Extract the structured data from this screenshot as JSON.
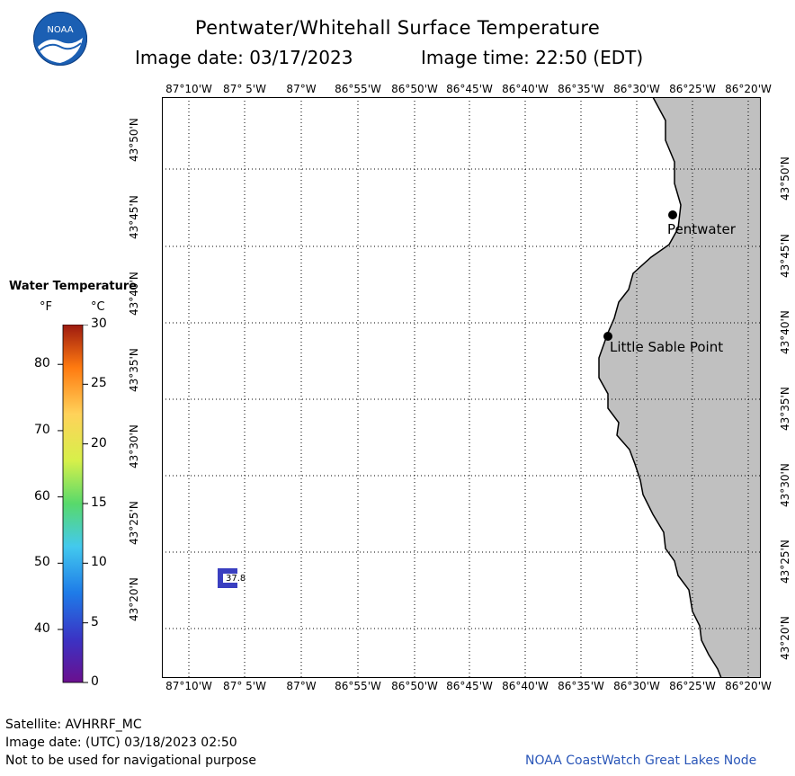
{
  "header": {
    "title": "Pentwater/Whitehall Surface Temperature",
    "image_date": "Image date: 03/17/2023",
    "image_time": "Image time: 22:50 (EDT)",
    "logo_text": "NOAA"
  },
  "map": {
    "lon_labels": [
      "87°10'W",
      "87° 5'W",
      "87°W",
      "86°55'W",
      "86°50'W",
      "86°45'W",
      "86°40'W",
      "86°35'W",
      "86°30'W",
      "86°25'W",
      "86°20'W"
    ],
    "lat_labels": [
      "43°50'N",
      "43°45'N",
      "43°40'N",
      "43°35'N",
      "43°30'N",
      "43°25'N",
      "43°20'N"
    ],
    "places": [
      {
        "name": "Pentwater"
      },
      {
        "name": "Little Sable Point"
      }
    ],
    "buoy_reading": "37.8",
    "colors": {
      "land": "#c0c0c0",
      "water": "#ffffff",
      "buoy": "#3a3fc0"
    }
  },
  "legend": {
    "title": "Water Temperature",
    "unit_f": "°F",
    "unit_c": "°C",
    "f_ticks": [
      "80",
      "70",
      "60",
      "50",
      "40"
    ],
    "c_ticks": [
      "30",
      "25",
      "20",
      "15",
      "10",
      "5",
      "0"
    ]
  },
  "footer": {
    "satellite": "Satellite: AVHRRF_MC",
    "utc_date": "Image date: (UTC) 03/18/2023  02:50",
    "disclaimer": "Not to be used for navigational purpose",
    "node": "NOAA CoastWatch Great Lakes Node"
  }
}
